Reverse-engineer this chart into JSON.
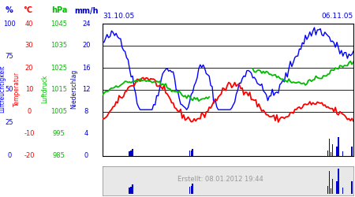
{
  "date_start": "31.10.05",
  "date_end": "06.11.05",
  "created": "Erstellt: 08.01.2012 19:44",
  "headers": [
    {
      "text": "%",
      "color": "#0000ff"
    },
    {
      "text": "°C",
      "color": "#ff0000"
    },
    {
      "text": "hPa",
      "color": "#00bb00"
    },
    {
      "text": "mm/h",
      "color": "#0000cc"
    }
  ],
  "hum_ticks": [
    [
      100,
      "100"
    ],
    [
      75,
      "75"
    ],
    [
      50,
      "50"
    ],
    [
      25,
      "25"
    ],
    [
      0,
      "0"
    ]
  ],
  "temp_ticks": [
    [
      40,
      "40"
    ],
    [
      30,
      "30"
    ],
    [
      20,
      "20"
    ],
    [
      10,
      "10"
    ],
    [
      0,
      "0"
    ],
    [
      -10,
      "-10"
    ],
    [
      -20,
      "-20"
    ]
  ],
  "pres_ticks": [
    [
      1045,
      "1045"
    ],
    [
      1035,
      "1035"
    ],
    [
      1025,
      "1025"
    ],
    [
      1015,
      "1015"
    ],
    [
      1005,
      "1005"
    ],
    [
      995,
      "995"
    ],
    [
      985,
      "985"
    ]
  ],
  "mmh_ticks": [
    [
      24,
      "24"
    ],
    [
      20,
      "20"
    ],
    [
      16,
      "16"
    ],
    [
      12,
      "12"
    ],
    [
      8,
      "8"
    ],
    [
      4,
      "4"
    ],
    [
      0,
      "0"
    ]
  ],
  "rot_labels": [
    {
      "text": "Luftfeuchtigkeit",
      "color": "#0000ff"
    },
    {
      "text": "Temperatur",
      "color": "#ff0000"
    },
    {
      "text": "Luftdruck",
      "color": "#00bb00"
    },
    {
      "text": "Niederschlag",
      "color": "#0000cc"
    }
  ],
  "grid_lines_mmh": [
    20,
    16,
    12,
    8
  ],
  "hum_color": "#0000ff",
  "temp_color": "#ff0000",
  "pres_color": "#00bb00",
  "prec_color": "#0000cc",
  "n_points": 168,
  "seed": 42,
  "bg_color": "#ffffff",
  "footer_bg": "#e8e8e8"
}
